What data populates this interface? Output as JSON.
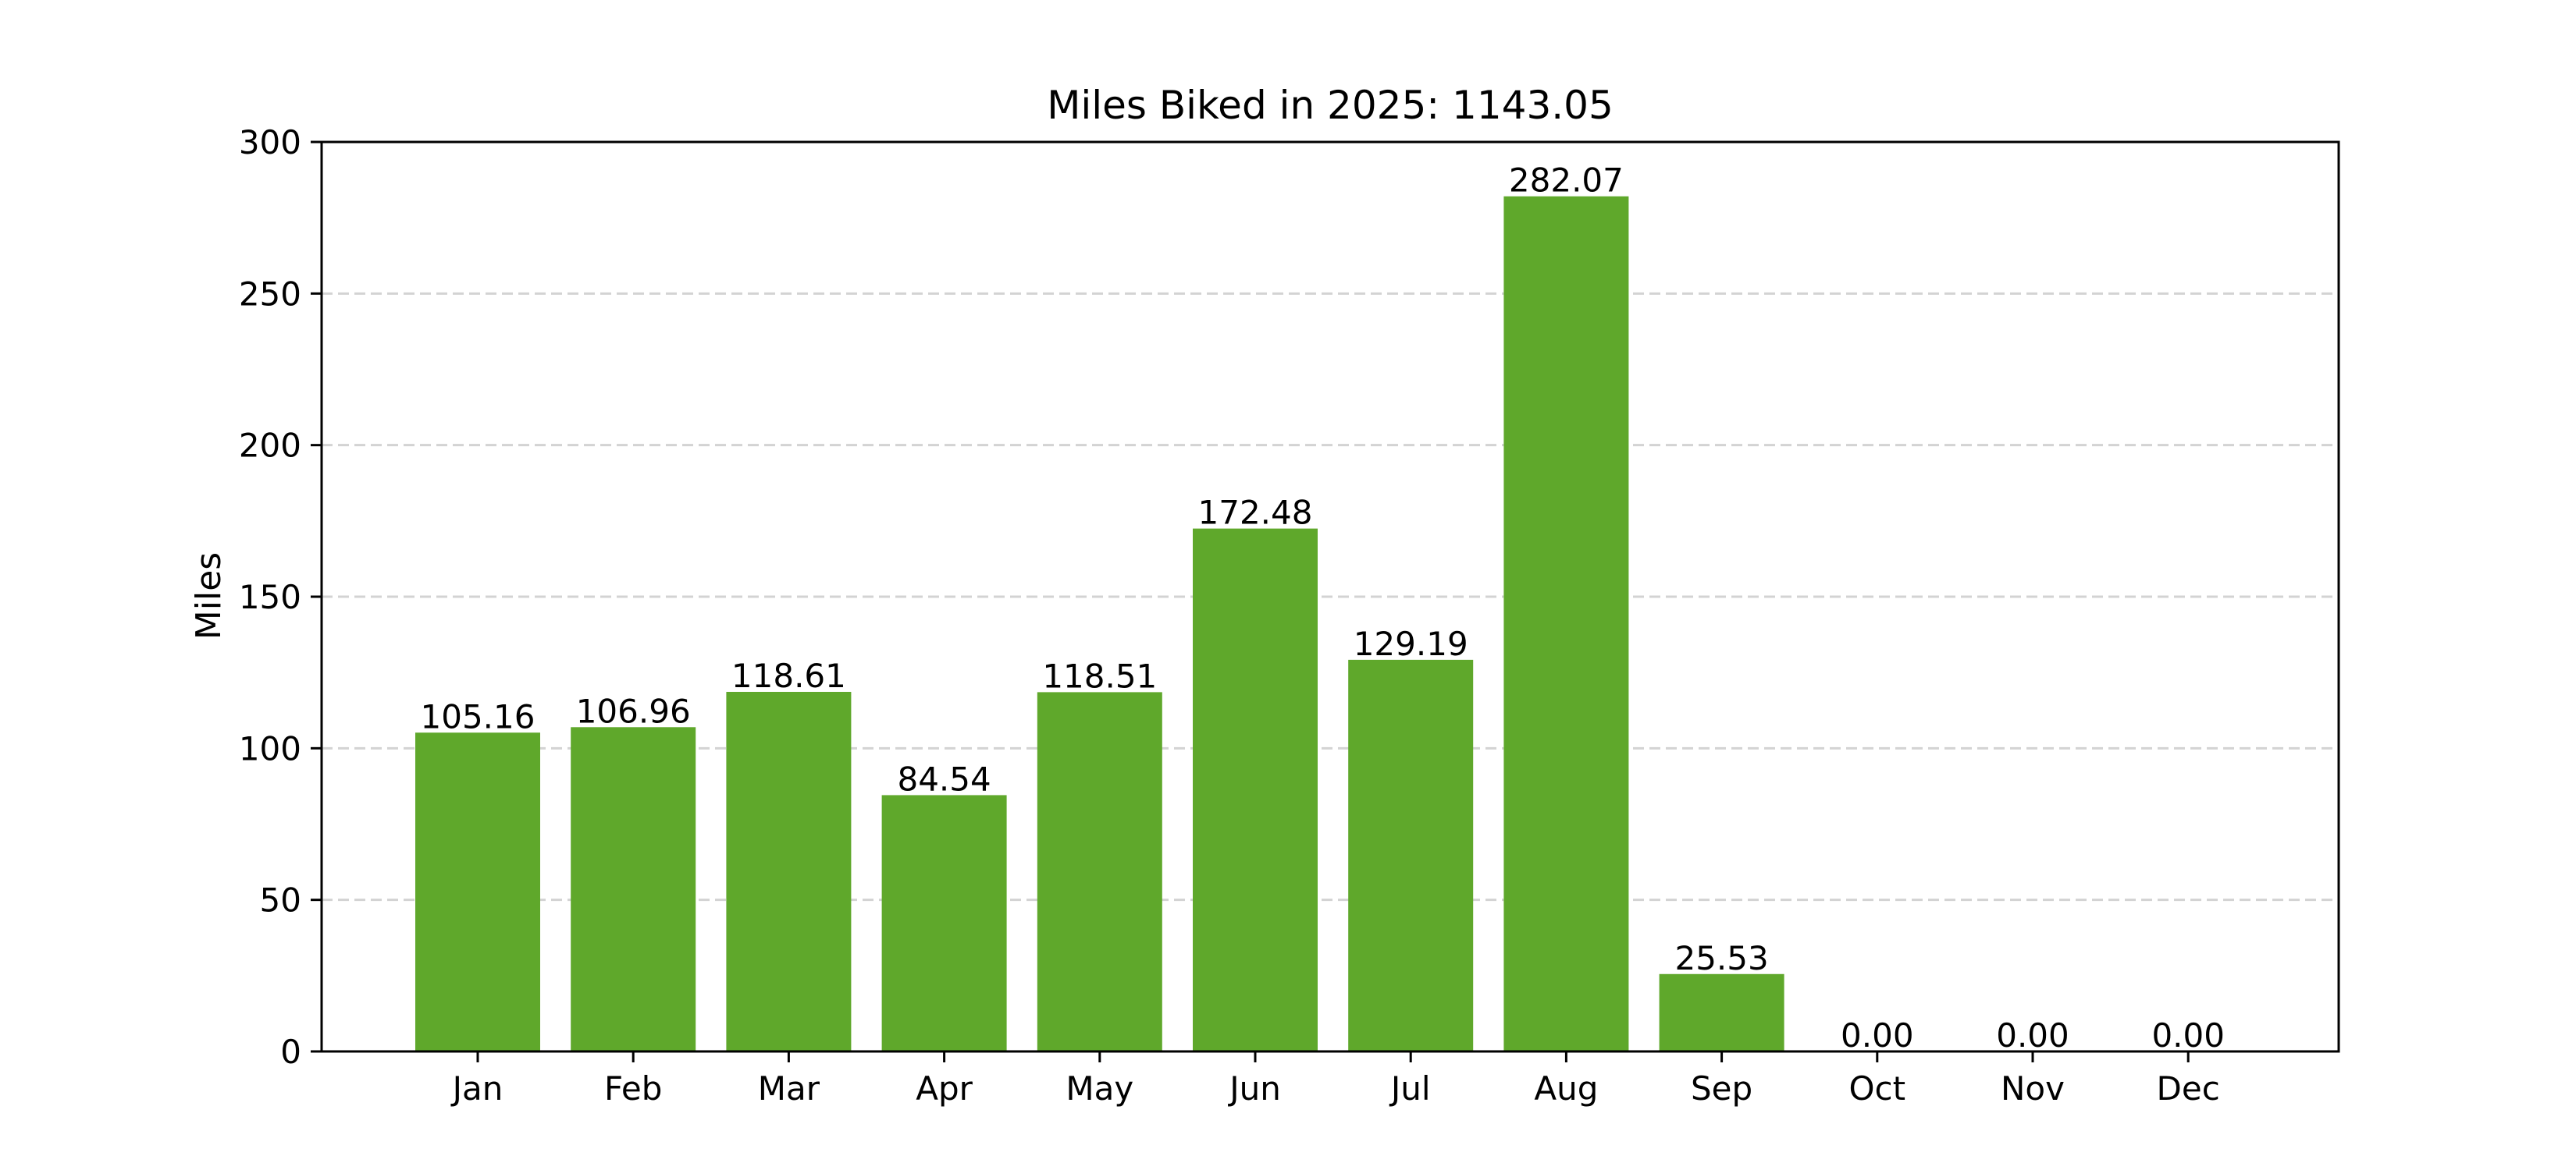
{
  "chart_data": {
    "type": "bar",
    "title": "Miles Biked in 2025: 1143.05",
    "xlabel": "",
    "ylabel": "Miles",
    "categories": [
      "Jan",
      "Feb",
      "Mar",
      "Apr",
      "May",
      "Jun",
      "Jul",
      "Aug",
      "Sep",
      "Oct",
      "Nov",
      "Dec"
    ],
    "values": [
      105.16,
      106.96,
      118.61,
      84.54,
      118.51,
      172.48,
      129.19,
      282.07,
      25.53,
      0.0,
      0.0,
      0.0
    ],
    "value_labels": [
      "105.16",
      "106.96",
      "118.61",
      "84.54",
      "118.51",
      "172.48",
      "129.19",
      "282.07",
      "25.53",
      "0.00",
      "0.00",
      "0.00"
    ],
    "ylim": [
      0,
      300
    ],
    "yticks": [
      0,
      50,
      100,
      150,
      200,
      250,
      300
    ],
    "ytick_labels": [
      "0",
      "50",
      "100",
      "150",
      "200",
      "250",
      "300"
    ],
    "grid": {
      "y": true,
      "x": false,
      "style": "dashed"
    },
    "bar_color": "#5fa82b",
    "grid_color": "#d3d3d3",
    "axis_color": "#000000"
  }
}
